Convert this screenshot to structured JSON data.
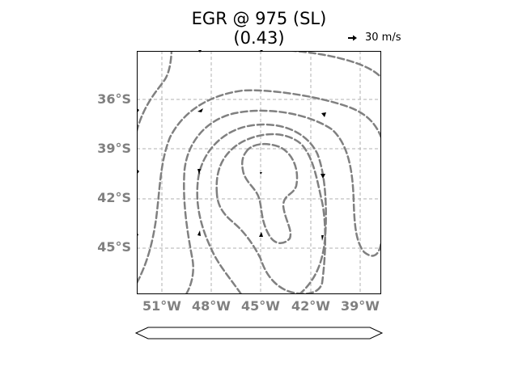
{
  "title": {
    "line1": "EGR @ 975 (SL)",
    "line2": "(0.43)"
  },
  "reference_vector": {
    "label": "30 m/s",
    "icon": "arrow-right-icon"
  },
  "lat_labels": [
    "36°S",
    "39°S",
    "42°S",
    "45°S"
  ],
  "lon_labels": [
    "51°W",
    "48°W",
    "45°W",
    "42°W",
    "39°W"
  ],
  "map": {
    "lat_range": [
      -48.0,
      -33.2
    ],
    "lon_range": [
      -52.5,
      -37.7
    ],
    "gridlines": true,
    "contour_style": "dashed",
    "contour_color": "#808080"
  },
  "colorbar": {
    "shape": "extend-both",
    "fill": "#ffffff"
  }
}
